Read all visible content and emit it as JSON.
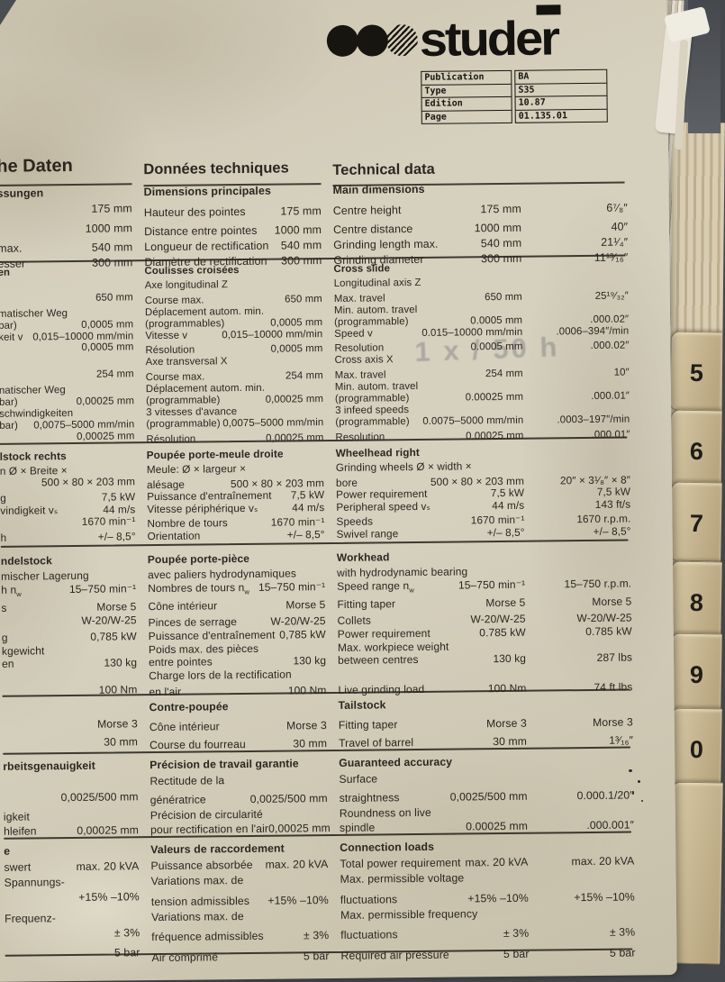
{
  "brand": {
    "logo_text": "studer"
  },
  "publication_table": [
    {
      "label": "Publication",
      "value": "BA"
    },
    {
      "label": "Type",
      "value": "S35"
    },
    {
      "label": "Edition",
      "value": "10.87"
    },
    {
      "label": "Page",
      "value": "01.135.01"
    }
  ],
  "headings": {
    "de": "he Daten",
    "fr": "Données techniques",
    "en": "Technical data"
  },
  "sections": [
    {
      "id": "main-dimensions",
      "de_title": "ssungen",
      "fr_title": "Dimensions principales",
      "en_title": "Main dimensions",
      "rows": [
        [
          "",
          "175 mm",
          "Hauteur des pointes",
          "175 mm",
          "Centre height",
          "175 mm",
          "6⁷⁄₈″"
        ],
        [
          "",
          "1000 mm",
          "Distance entre pointes",
          "1000 mm",
          "Centre distance",
          "1000 mm",
          "40″"
        ],
        [
          "max.",
          "540 mm",
          "Longueur de rectification",
          "540 mm",
          "Grinding length max.",
          "540 mm",
          "21¹⁄₄″"
        ],
        [
          "esser",
          "300 mm",
          "Diamètre de rectification",
          "300 mm",
          "Grinding diameter",
          "300 mm",
          "11¹³⁄₁₆″"
        ]
      ]
    },
    {
      "id": "cross-slide",
      "de_title": "en",
      "fr_title": "Coulisses croisées",
      "en_title": "Cross slide",
      "rows": [
        [
          "",
          "",
          "Axe longitudinal Z",
          "",
          "Longitudinal axis Z",
          "",
          ""
        ],
        [
          "",
          "650 mm",
          "Course max.",
          "650 mm",
          "Max. travel",
          "650 mm",
          "25¹⁹⁄₃₂″"
        ],
        [
          "matischer Weg",
          "",
          "Déplacement autom. min.",
          "",
          "Min. autom. travel",
          "",
          ""
        ],
        [
          "bar)",
          "0,0005 mm",
          "(programmables)",
          "0,0005 mm",
          "(programmable)",
          "0.0005 mm",
          ".000.02″"
        ],
        [
          "keit v",
          "0,015–10000 mm/min",
          "Vitesse v",
          "0,015–10000 mm/min",
          "Speed v",
          "0.015–10000 mm/min",
          ".0006–394″/min"
        ],
        [
          "",
          "0,0005 mm",
          "Résolution",
          "0,0005 mm",
          "Resolution",
          "0.0005 mm",
          ".000.02″"
        ],
        [
          "",
          "",
          "",
          "",
          "",
          "",
          ""
        ],
        [
          "",
          "",
          "Axe transversal X",
          "",
          "Cross axis X",
          "",
          ""
        ],
        [
          "",
          "254 mm",
          "Course max.",
          "254 mm",
          "Max. travel",
          "254 mm",
          "10″"
        ],
        [
          "natischer Weg",
          "",
          "Déplacement autom. min.",
          "",
          "Min. autom. travel",
          "",
          ""
        ],
        [
          "bar)",
          "0,00025 mm",
          "(programmable)",
          "0,00025 mm",
          "(programmable)",
          "0.00025 mm",
          ".000.01″"
        ],
        [
          "schwindigkeiten",
          "",
          "3 vitesses d'avance",
          "",
          "3 infeed speeds",
          "",
          ""
        ],
        [
          "bar)",
          "0,0075–5000 mm/min",
          "(programmable)",
          "0,0075–5000 mm/min",
          "(programmable)",
          "0.0075–5000 mm/min",
          ".0003–197″/min"
        ],
        [
          "",
          "0,00025 mm",
          "Résolution",
          "0,00025 mm",
          "Resolution",
          "0.00025 mm",
          ".000.01″"
        ]
      ]
    },
    {
      "id": "wheelhead-right",
      "de_title": "lstock rechts",
      "fr_title": "Poupée porte-meule droite",
      "en_title": "Wheelhead right",
      "rows": [
        [
          "n Ø × Breite ×",
          "",
          "Meule: Ø × largeur ×",
          "",
          "Grinding wheels Ø × width ×",
          "",
          ""
        ],
        [
          "",
          "500 × 80 × 203 mm",
          "alésage",
          "500 × 80 × 203 mm",
          "bore",
          "500 × 80 × 203 mm",
          "20″ × 3¹⁄₈″ × 8″"
        ],
        [
          "g",
          "7,5 kW",
          "Puissance d'entraînement",
          "7,5 kW",
          "Power requirement",
          "7,5 kW",
          "7,5 kW"
        ],
        [
          "vindigkeit vₛ",
          "44 m/s",
          "Vitesse périphérique vₛ",
          "44 m/s",
          "Peripheral speed vₛ",
          "44 m/s",
          "143 ft/s"
        ],
        [
          "",
          "1670 min⁻¹",
          "Nombre de tours",
          "1670 min⁻¹",
          "Speeds",
          "1670 min⁻¹",
          "1670 r.p.m."
        ],
        [
          "h",
          "+/– 8,5°",
          "Orientation",
          "+/– 8,5°",
          "Swivel range",
          "+/– 8,5°",
          "+/– 8,5°"
        ]
      ]
    },
    {
      "id": "workhead",
      "de_title": "ndelstock",
      "fr_title": "Poupée porte-pièce",
      "en_title": "Workhead",
      "rows": [
        [
          "mischer Lagerung",
          "",
          "avec paliers hydrodynamiques",
          "",
          "with hydrodynamic bearing",
          "",
          ""
        ],
        [
          "h n_w",
          "15–750 min⁻¹",
          "Nombres de tours n_w",
          "15–750 min⁻¹",
          "Speed range n_w",
          "15–750 min⁻¹",
          "15–750 r.p.m."
        ],
        [
          "s",
          "Morse 5",
          "Cône intérieur",
          "Morse 5",
          "Fitting taper",
          "Morse 5",
          "Morse 5"
        ],
        [
          "",
          "W-20/W-25",
          "Pinces de serrage",
          "W-20/W-25",
          "Collets",
          "W-20/W-25",
          "W-20/W-25"
        ],
        [
          "g",
          "0,785 kW",
          "Puissance d'entraînement",
          "0,785 kW",
          "Power requirement",
          "0.785 kW",
          "0.785 kW"
        ],
        [
          "kgewicht",
          "",
          "Poids max. des pièces",
          "",
          "Max. workpiece weight",
          "",
          ""
        ],
        [
          "en",
          "130 kg",
          "entre pointes",
          "130 kg",
          "between centres",
          "130 kg",
          "287 lbs"
        ],
        [
          "",
          "",
          "Charge lors de la rectification",
          "",
          "",
          "",
          ""
        ],
        [
          "",
          "100 Nm",
          "en l'air",
          "100 Nm",
          "Live grinding load",
          "100 Nm",
          "74 ft lbs"
        ]
      ]
    },
    {
      "id": "tailstock",
      "de_title": "",
      "fr_title": "Contre-poupée",
      "en_title": "Tailstock",
      "rows": [
        [
          "",
          "Morse 3",
          "Cône intérieur",
          "Morse 3",
          "Fitting taper",
          "Morse 3",
          "Morse 3"
        ],
        [
          "",
          "30 mm",
          "Course du fourreau",
          "30 mm",
          "Travel of barrel",
          "30 mm",
          "1³⁄₁₆″"
        ]
      ]
    },
    {
      "id": "guaranteed-accuracy",
      "de_title": "rbeitsgenauigkeit",
      "fr_title": "Précision de travail garantie",
      "en_title": "Guaranteed accuracy",
      "rows": [
        [
          "",
          "",
          "Rectitude de la",
          "",
          "Surface",
          "",
          ""
        ],
        [
          "",
          "0,0025/500 mm",
          "génératrice",
          "0,0025/500 mm",
          "straightness",
          "0,0025/500 mm",
          "0.000.1/20″"
        ],
        [
          "igkeit",
          "",
          "Précision de circularité",
          "",
          "Roundness on live",
          "",
          ""
        ],
        [
          "hleifen",
          "0,00025 mm",
          "pour rectification en l'air",
          "0,00025 mm",
          "spindle",
          "0.00025 mm",
          ".000.001″"
        ]
      ]
    },
    {
      "id": "connection-loads",
      "de_title": "e",
      "fr_title": "Valeurs de raccordement",
      "en_title": "Connection loads",
      "rows": [
        [
          "swert",
          "max. 20 kVA",
          "Puissance absorbée",
          "max. 20 kVA",
          "Total power requirement",
          "max. 20 kVA",
          "max. 20 kVA"
        ],
        [
          "Spannungs-",
          "",
          "Variations max. de",
          "",
          "Max. permissible voltage",
          "",
          ""
        ],
        [
          "",
          "+15% –10%",
          "tension admissibles",
          "+15% –10%",
          "fluctuations",
          "+15% –10%",
          "+15% –10%"
        ],
        [
          "Frequenz-",
          "",
          "Variations max. de",
          "",
          "Max. permissible frequency",
          "",
          ""
        ],
        [
          "",
          "± 3%",
          "fréquence admissibles",
          "± 3%",
          "fluctuations",
          "± 3%",
          "± 3%"
        ],
        [
          "",
          "5 bar",
          "Air comprimé",
          "5 bar",
          "Required air pressure",
          "5 bar",
          "5 bar"
        ]
      ]
    }
  ],
  "index_tabs": [
    "5",
    "6",
    "7",
    "8",
    "9",
    "0"
  ],
  "page_marks": {
    "ghost_text": "1 x / 50 h"
  },
  "colors": {
    "paper": "#d6d0be",
    "ink": "#2b2620",
    "background": "#5d6165",
    "tab": "#c7b894"
  }
}
